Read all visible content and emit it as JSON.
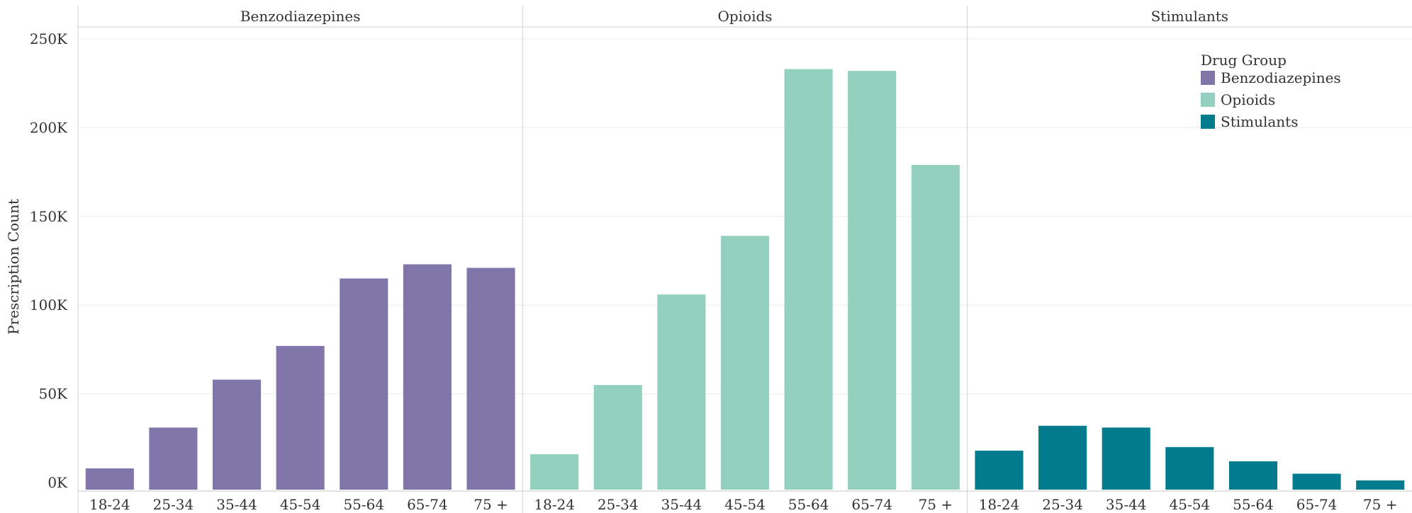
{
  "chart_data": {
    "type": "bar",
    "title": "",
    "xlabel": "",
    "ylabel": "Prescription Count",
    "ylim": [
      0,
      250000
    ],
    "yticks": [
      0,
      50000,
      100000,
      150000,
      200000,
      250000
    ],
    "ytick_labels": [
      "0K",
      "50K",
      "100K",
      "150K",
      "200K",
      "250K"
    ],
    "grid": true,
    "categories": [
      "18-24",
      "25-34",
      "35-44",
      "45-54",
      "55-64",
      "65-74",
      "75 +"
    ],
    "legend": {
      "title": "Drug Group",
      "placement": "top-right",
      "entries": [
        "Benzodiazepines",
        "Opioids",
        "Stimulants"
      ]
    },
    "series": [
      {
        "name": "Benzodiazepines",
        "color": "#8175aa",
        "values": [
          8000,
          31000,
          58000,
          77000,
          115000,
          123000,
          121000
        ]
      },
      {
        "name": "Opioids",
        "color": "#94d0c0",
        "values": [
          16000,
          55000,
          106000,
          139000,
          233000,
          232000,
          179000
        ]
      },
      {
        "name": "Stimulants",
        "color": "#027b8e",
        "values": [
          18000,
          32000,
          31000,
          20000,
          12000,
          5000,
          1200
        ]
      }
    ]
  }
}
